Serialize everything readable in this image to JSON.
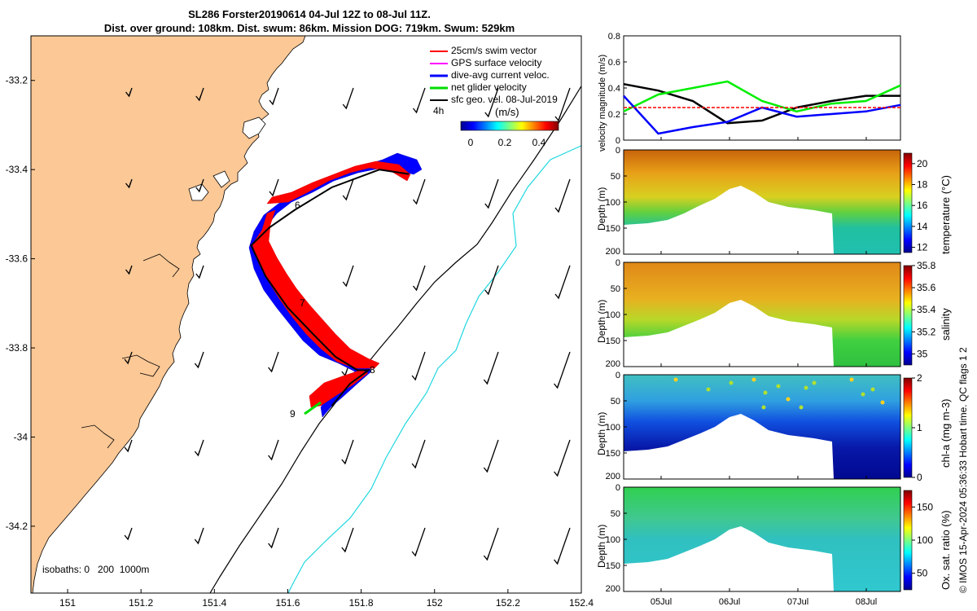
{
  "title": {
    "line1": "SL286 Forster20190614 04-Jul 12Z to 08-Jul 11Z.",
    "line2": "Dist. over ground: 108km. Dist. swum: 86km. Mission DOG: 719km. Swum: 529km"
  },
  "map": {
    "legend": [
      {
        "label": "25cm/s swim vector",
        "color": "#ff0000"
      },
      {
        "label": "GPS surface velocity",
        "color": "#ff00ff"
      },
      {
        "label": "dive-avg current veloc.",
        "color": "#0000ff"
      },
      {
        "label": "net glider velocity",
        "color": "#00dd00"
      },
      {
        "label": "sfc geo. vel. 08-Jul-2019",
        "color": "#000000"
      }
    ],
    "time_label": "4h",
    "colorbar_unit": "(m/s)",
    "colorbar_ticks": [
      "0",
      "0.2",
      "0.4"
    ],
    "isobaths_label": "isobaths: 0   200  1000m",
    "day_labels": [
      "6",
      "7",
      "8",
      "9"
    ],
    "xticks": [
      "151",
      "151.2",
      "151.4",
      "151.6",
      "151.8",
      "152",
      "152.2",
      "152.4"
    ],
    "yticks": [
      "-33.2",
      "-33.4",
      "-33.6",
      "-33.8",
      "-34",
      "-34.2"
    ],
    "colors": {
      "land": "#fbc896",
      "track_red": "#ff0000",
      "track_blue": "#0000ff",
      "isobath_200": "#000000",
      "isobath_1000": "#20d8e0"
    }
  },
  "panels": {
    "velocity": {
      "ylabel": "velocity magnitude (m/s)",
      "yticks": [
        "0",
        "0.2",
        "0.4",
        "0.6",
        "0.8"
      ]
    },
    "temperature": {
      "ylabel": "Depth (m)",
      "cbar_label": "temperature (°C)",
      "cbar_ticks": [
        "12",
        "14",
        "16",
        "18",
        "20"
      ]
    },
    "salinity": {
      "ylabel": "Depth (m)",
      "cbar_label": "salinity",
      "cbar_ticks": [
        "35",
        "35.2",
        "35.4",
        "35.6",
        "35.8"
      ]
    },
    "chla": {
      "ylabel": "Depth (m)",
      "cbar_label": "chl-a (mg m-3)",
      "cbar_ticks": [
        "0",
        "1",
        "2"
      ]
    },
    "oxygen": {
      "ylabel": "Depth (m)",
      "cbar_label": "Ox. sat. ratio (%)",
      "cbar_ticks": [
        "50",
        "100",
        "150"
      ]
    },
    "depth_ticks": [
      "0",
      "50",
      "100",
      "150",
      "200"
    ],
    "xticks": [
      "05Jul",
      "06Jul",
      "07Jul",
      "08Jul"
    ]
  },
  "footer": "© IMOS 15-Apr-2024 05:36:33 Hobart time. QC flags 1  2",
  "chart_data": [
    {
      "type": "scatter",
      "title": "SL286 Forster20190614 04-Jul 12Z to 08-Jul 11Z.",
      "xlabel": "",
      "ylabel": "",
      "xlim": [
        150.9,
        152.4
      ],
      "ylim": [
        -34.35,
        -33.1
      ],
      "track": {
        "lon": [
          151.93,
          151.85,
          151.72,
          151.62,
          151.55,
          151.5,
          151.54,
          151.6,
          151.67,
          151.73,
          151.79,
          151.82,
          151.77,
          151.72
        ],
        "lat": [
          -33.41,
          -33.4,
          -33.44,
          -33.49,
          -33.53,
          -33.57,
          -33.64,
          -33.71,
          -33.77,
          -33.82,
          -33.85,
          -33.85,
          -33.88,
          -33.93
        ]
      }
    },
    {
      "type": "line",
      "ylabel": "velocity magnitude (m/s)",
      "ylim": [
        0,
        0.8
      ],
      "x": [
        "04Jul12Z",
        "05Jul",
        "05Jul12Z",
        "06Jul",
        "06Jul12Z",
        "07Jul",
        "07Jul12Z",
        "08Jul",
        "08Jul11Z"
      ],
      "series": [
        {
          "color": "#000000",
          "values": [
            0.43,
            0.38,
            0.3,
            0.13,
            0.15,
            0.25,
            0.3,
            0.34,
            0.34
          ]
        },
        {
          "color": "#00ee00",
          "values": [
            0.22,
            0.35,
            0.4,
            0.45,
            0.3,
            0.22,
            0.28,
            0.3,
            0.42
          ]
        },
        {
          "color": "#0000ff",
          "values": [
            0.34,
            0.05,
            0.1,
            0.14,
            0.25,
            0.18,
            0.2,
            0.22,
            0.27
          ]
        },
        {
          "color": "#ff0000",
          "values": [
            0.25,
            0.25,
            0.25,
            0.25,
            0.25,
            0.25,
            0.25,
            0.25,
            0.25
          ]
        }
      ]
    },
    {
      "type": "heatmap",
      "ylabel": "Depth (m)",
      "ylim": [
        200,
        0
      ],
      "clim": [
        11.5,
        21
      ],
      "colorbar": "temperature (°C)"
    },
    {
      "type": "heatmap",
      "ylabel": "Depth (m)",
      "ylim": [
        200,
        0
      ],
      "clim": [
        34.9,
        35.8
      ],
      "colorbar": "salinity"
    },
    {
      "type": "heatmap",
      "ylabel": "Depth (m)",
      "ylim": [
        200,
        0
      ],
      "clim": [
        0,
        2
      ],
      "colorbar": "chl-a (mg m-3)"
    },
    {
      "type": "heatmap",
      "ylabel": "Depth (m)",
      "ylim": [
        200,
        0
      ],
      "clim": [
        25,
        175
      ],
      "colorbar": "Ox. sat. ratio (%)"
    }
  ]
}
